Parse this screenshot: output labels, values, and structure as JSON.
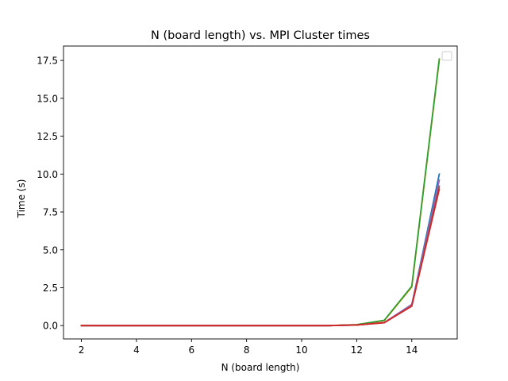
{
  "chart_data": {
    "type": "line",
    "title": "N (board length) vs. MPI Cluster times",
    "xlabel": "N (board length)",
    "ylabel": "Time (s)",
    "xlim": [
      1.35,
      15.65
    ],
    "ylim": [
      -0.88,
      18.45
    ],
    "xticks": [
      2,
      4,
      6,
      8,
      10,
      12,
      14
    ],
    "yticks": [
      0.0,
      2.5,
      5.0,
      7.5,
      10.0,
      12.5,
      15.0,
      17.5
    ],
    "ytick_labels": [
      "0.0",
      "2.5",
      "5.0",
      "7.5",
      "10.0",
      "12.5",
      "15.0",
      "17.5"
    ],
    "legend": "top-right",
    "legend_entries": [],
    "grid": false,
    "x": [
      2,
      3,
      4,
      5,
      6,
      7,
      8,
      9,
      10,
      11,
      12,
      13,
      14,
      15
    ],
    "series": [
      {
        "color": "#1f77b4",
        "values": [
          0,
          0,
          0,
          0,
          0,
          0,
          0,
          0,
          0,
          0,
          0.04,
          0.2,
          1.35,
          10.0
        ]
      },
      {
        "color": "#ff7f0e",
        "values": [
          0,
          0,
          0,
          0,
          0,
          0,
          0,
          0,
          0,
          0,
          0.06,
          0.33,
          2.55,
          17.55
        ]
      },
      {
        "color": "#2ca02c",
        "values": [
          0,
          0,
          0,
          0,
          0,
          0,
          0,
          0,
          0,
          0,
          0.06,
          0.35,
          2.6,
          17.6
        ]
      },
      {
        "color": "#9467bd",
        "values": [
          0,
          0,
          0,
          0,
          0,
          0,
          0,
          0,
          0,
          0,
          0.04,
          0.2,
          1.4,
          9.6
        ]
      },
      {
        "color": "#8c564b",
        "values": [
          0,
          0,
          0,
          0,
          0,
          0,
          0,
          0,
          0,
          0,
          0.04,
          0.19,
          1.3,
          9.2
        ]
      },
      {
        "color": "#d62728",
        "values": [
          0,
          0,
          0,
          0,
          0,
          0,
          0,
          0,
          0,
          0,
          0.04,
          0.19,
          1.28,
          9.0
        ]
      }
    ]
  }
}
